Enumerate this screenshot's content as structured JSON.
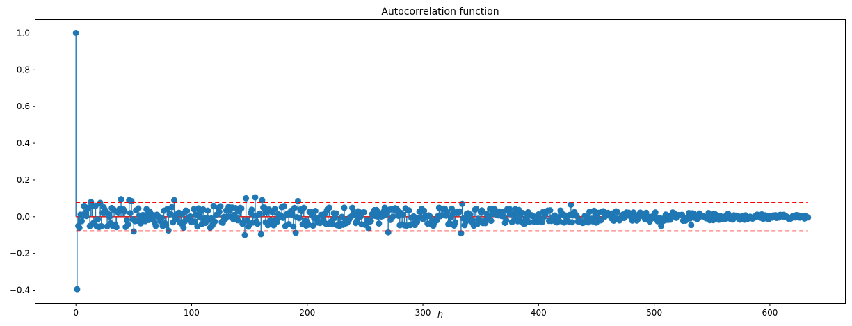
{
  "chart_data": {
    "type": "scatter",
    "subtype": "stem",
    "title": "Autocorrelation function",
    "xlabel": "h",
    "ylabel": "",
    "xlim": [
      -35,
      665
    ],
    "ylim": [
      -0.47,
      1.07
    ],
    "xticks": [
      0,
      100,
      200,
      300,
      400,
      500,
      600
    ],
    "yticks": [
      -0.4,
      -0.2,
      0.0,
      0.2,
      0.4,
      0.6,
      0.8,
      1.0
    ],
    "ytick_labels": [
      "−0.4",
      "−0.2",
      "0.0",
      "0.2",
      "0.4",
      "0.6",
      "0.8",
      "1.0"
    ],
    "grid": false,
    "n_lags": 634,
    "confidence_band": 0.078,
    "colors": {
      "stem": "#1f77b4",
      "baseline": "#d62728",
      "band": "#ff0000"
    },
    "seed": 7,
    "highlights": [
      {
        "h": 0,
        "y": 1.0
      },
      {
        "h": 1,
        "y": -0.395
      },
      {
        "h": 2,
        "y": -0.05
      },
      {
        "h": 3,
        "y": -0.06
      },
      {
        "h": 13,
        "y": 0.08
      },
      {
        "h": 21,
        "y": 0.075
      },
      {
        "h": 39,
        "y": 0.095
      },
      {
        "h": 46,
        "y": 0.09
      },
      {
        "h": 48,
        "y": 0.085
      },
      {
        "h": 50,
        "y": -0.08
      },
      {
        "h": 80,
        "y": -0.075
      },
      {
        "h": 85,
        "y": 0.09
      },
      {
        "h": 146,
        "y": -0.1
      },
      {
        "h": 147,
        "y": 0.1
      },
      {
        "h": 155,
        "y": 0.105
      },
      {
        "h": 160,
        "y": -0.095
      },
      {
        "h": 161,
        "y": 0.09
      },
      {
        "h": 190,
        "y": -0.088
      },
      {
        "h": 192,
        "y": 0.085
      },
      {
        "h": 253,
        "y": -0.065
      },
      {
        "h": 270,
        "y": -0.085
      },
      {
        "h": 333,
        "y": -0.09
      },
      {
        "h": 334,
        "y": 0.07
      },
      {
        "h": 428,
        "y": 0.065
      },
      {
        "h": 506,
        "y": -0.05
      },
      {
        "h": 532,
        "y": -0.045
      }
    ]
  }
}
